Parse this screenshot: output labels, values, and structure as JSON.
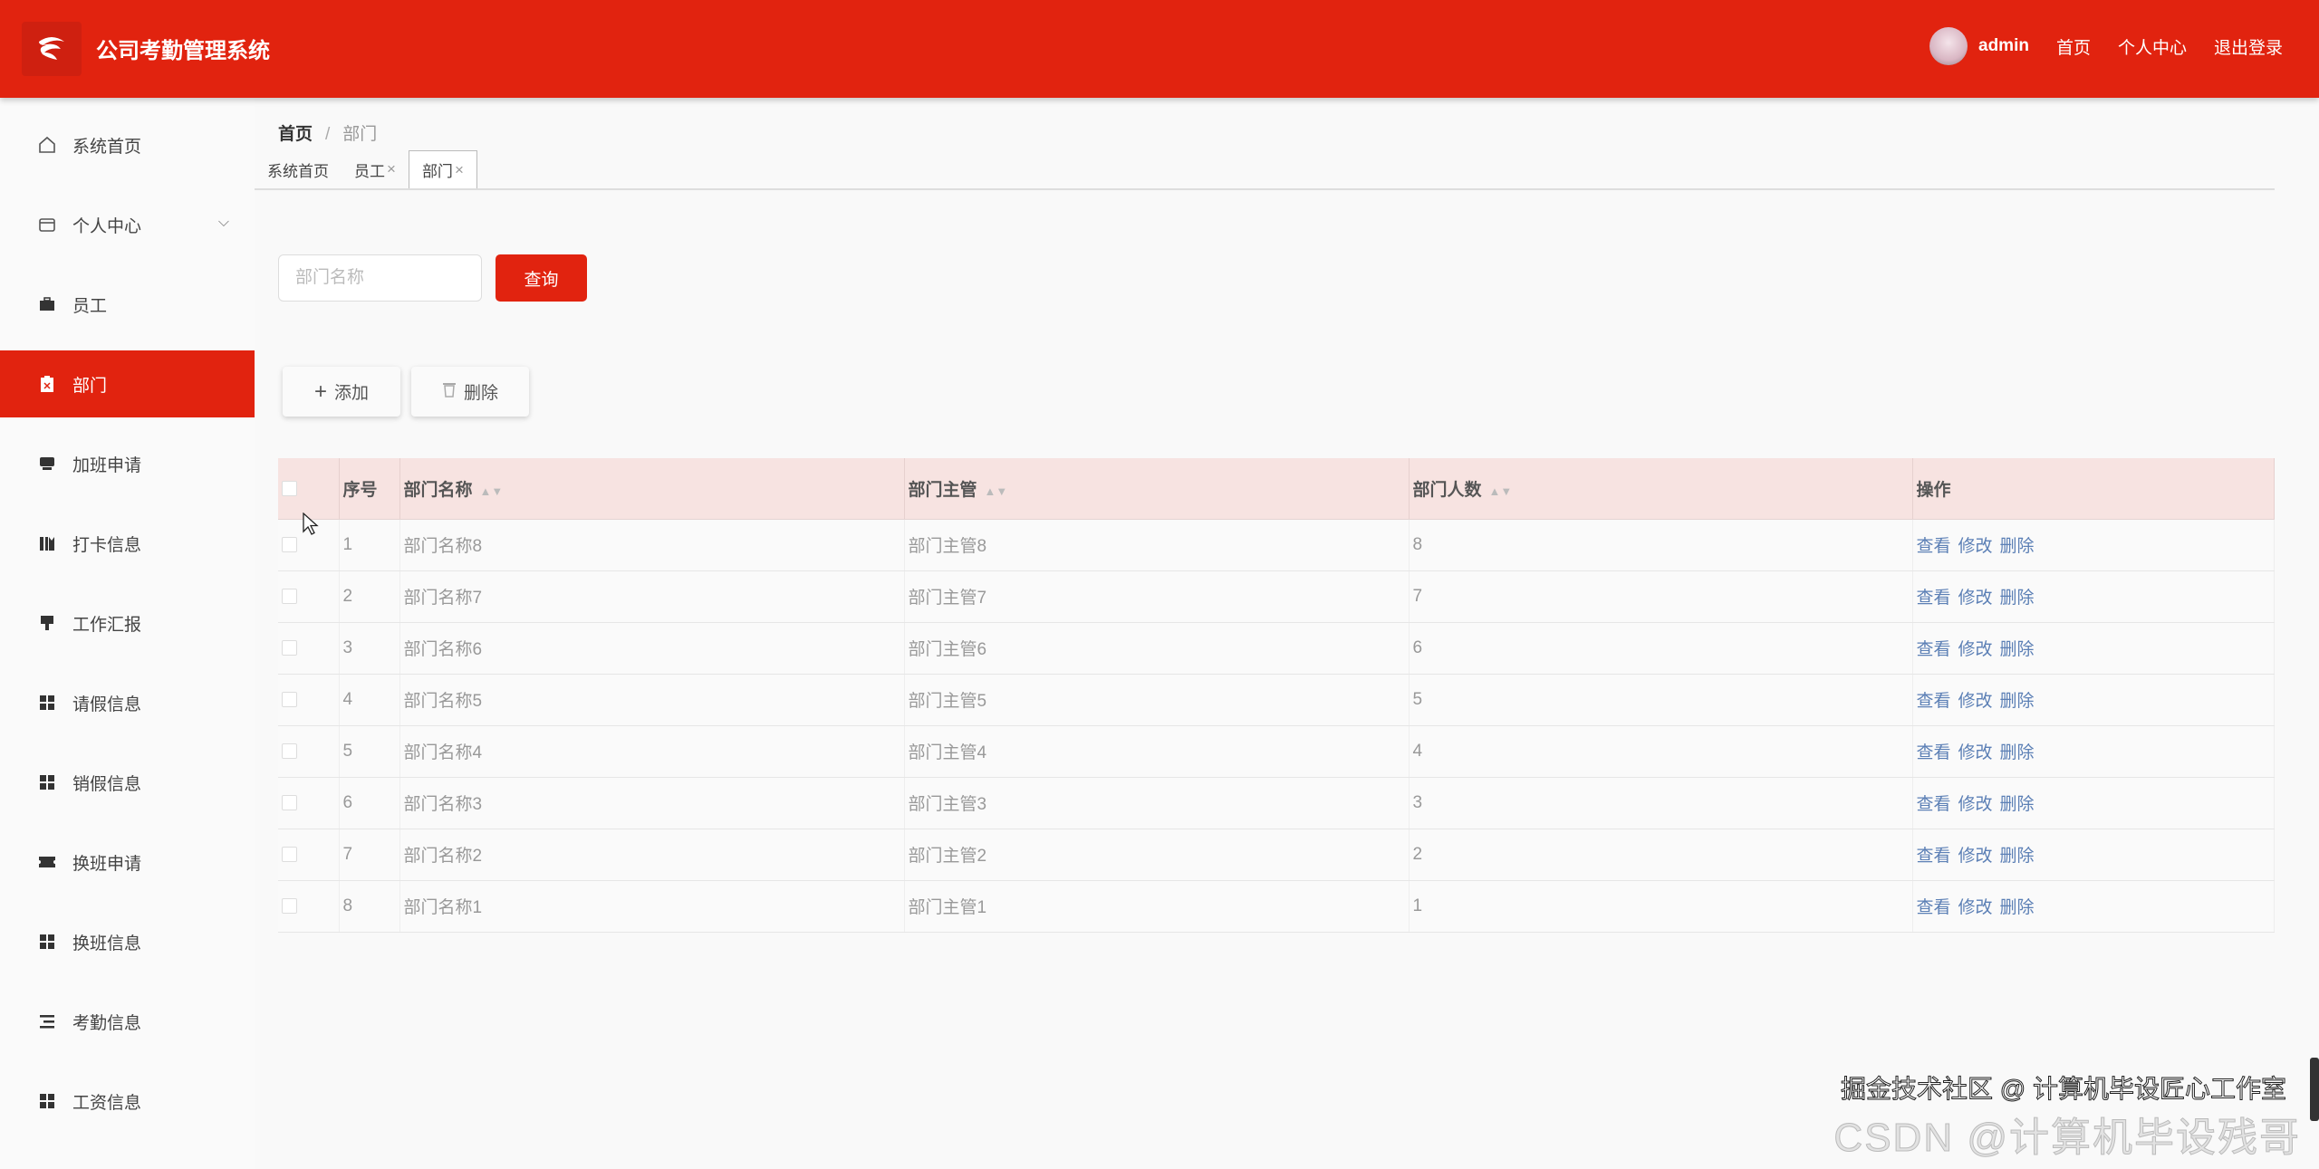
{
  "header": {
    "title": "公司考勤管理系统",
    "username": "admin",
    "links": [
      "首页",
      "个人中心",
      "退出登录"
    ],
    "accent": "#e1230f"
  },
  "sidebar": {
    "items": [
      {
        "label": "系统首页",
        "icon": "home-icon"
      },
      {
        "label": "个人中心",
        "icon": "wallet-icon",
        "expandable": true
      },
      {
        "label": "员工",
        "icon": "briefcase-icon"
      },
      {
        "label": "部门",
        "icon": "clipboard-icon",
        "active": true
      },
      {
        "label": "加班申请",
        "icon": "printer-icon"
      },
      {
        "label": "打卡信息",
        "icon": "chart-icon"
      },
      {
        "label": "工作汇报",
        "icon": "brush-icon"
      },
      {
        "label": "请假信息",
        "icon": "grid-icon"
      },
      {
        "label": "销假信息",
        "icon": "grid-icon"
      },
      {
        "label": "换班申请",
        "icon": "ticket-icon"
      },
      {
        "label": "换班信息",
        "icon": "grid-icon"
      },
      {
        "label": "考勤信息",
        "icon": "list-icon"
      },
      {
        "label": "工资信息",
        "icon": "grid-icon"
      }
    ]
  },
  "breadcrumb": {
    "home": "首页",
    "sep": "/",
    "current": "部门"
  },
  "tabs": [
    {
      "label": "系统首页"
    },
    {
      "label": "员工",
      "close": "×"
    },
    {
      "label": "部门",
      "close": "×",
      "active": true
    }
  ],
  "search": {
    "placeholder": "部门名称",
    "button": "查询"
  },
  "actions": {
    "add": "添加",
    "delete": "删除"
  },
  "table": {
    "columns": [
      "序号",
      "部门名称",
      "部门主管",
      "部门人数",
      "操作"
    ],
    "rows": [
      [
        "1",
        "部门名称8",
        "部门主管8",
        "8"
      ],
      [
        "2",
        "部门名称7",
        "部门主管7",
        "7"
      ],
      [
        "3",
        "部门名称6",
        "部门主管6",
        "6"
      ],
      [
        "4",
        "部门名称5",
        "部门主管5",
        "5"
      ],
      [
        "5",
        "部门名称4",
        "部门主管4",
        "4"
      ],
      [
        "6",
        "部门名称3",
        "部门主管3",
        "3"
      ],
      [
        "7",
        "部门名称2",
        "部门主管2",
        "2"
      ],
      [
        "8",
        "部门名称1",
        "部门主管1",
        "1"
      ]
    ],
    "row_actions": [
      "查看",
      "修改",
      "删除"
    ]
  },
  "watermark": {
    "back": "CSDN @计算机毕设残哥",
    "front": "掘金技术社区 @ 计算机毕设匠心工作室"
  }
}
